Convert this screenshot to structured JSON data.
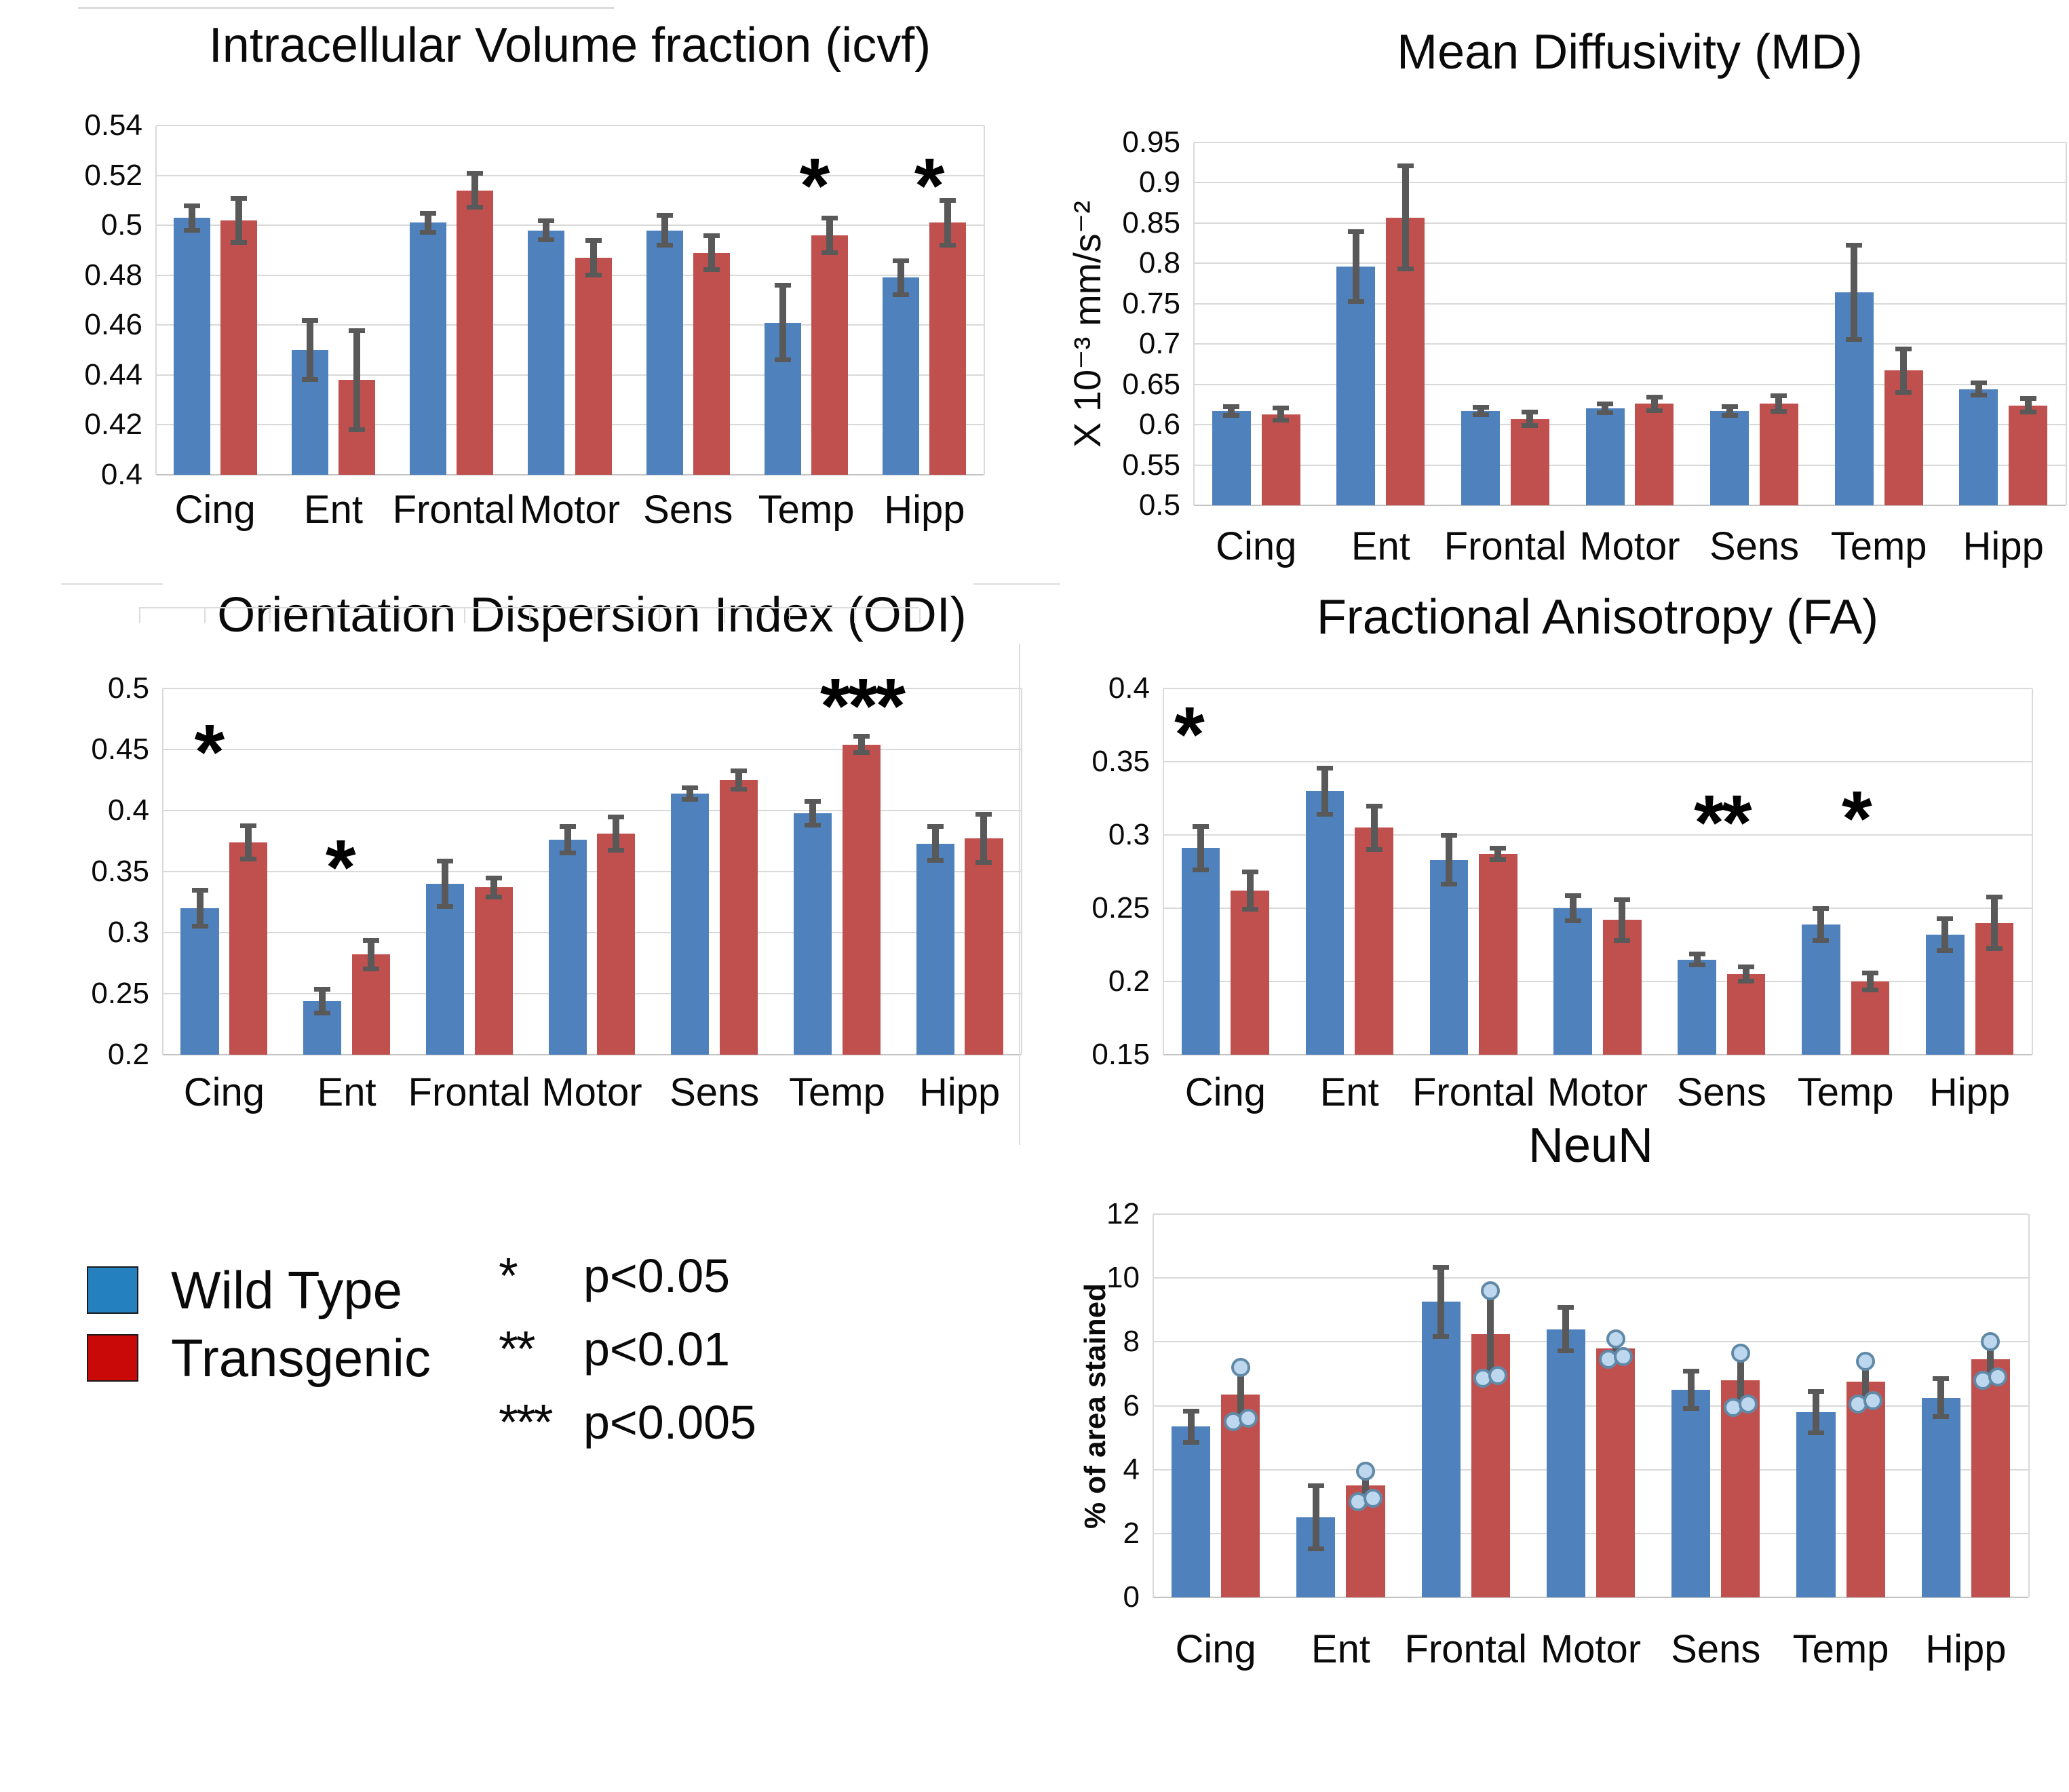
{
  "figure": {
    "background": "#ffffff",
    "description": "Five grouped bar charts comparing Wild Type vs Transgenic across brain regions with error bars and significance asterisks"
  },
  "legend": {
    "items": [
      {
        "label": "Wild Type",
        "color": "#2580bf"
      },
      {
        "label": "Transgenic",
        "color": "#c90808"
      }
    ],
    "significance": [
      {
        "symbol": "*",
        "label": "p<0.05"
      },
      {
        "symbol": "**",
        "label": "p<0.01"
      },
      {
        "symbol": "***",
        "label": "p<0.005"
      }
    ]
  },
  "series_colors": {
    "wild_type": "#4f81bd",
    "transgenic": "#c0504d",
    "error_bar": "#595959",
    "point_fill": "#bdd7ee",
    "point_stroke": "#6089a8"
  },
  "chart_data": [
    {
      "id": "icvf",
      "type": "bar",
      "title": "Intracellular Volume fraction (icvf)",
      "ylabel": "",
      "categories": [
        "Cing",
        "Ent",
        "Frontal",
        "Motor",
        "Sens",
        "Temp",
        "Hipp"
      ],
      "ylim": [
        0.4,
        0.54
      ],
      "grid": true,
      "yticks": [
        "0.4",
        "0.42",
        "0.44",
        "0.46",
        "0.48",
        "0.5",
        "0.52",
        "0.54"
      ],
      "ytick_values": [
        0.4,
        0.42,
        0.44,
        0.46,
        0.48,
        0.5,
        0.52,
        0.54
      ],
      "series": [
        {
          "name": "Wild Type",
          "values": [
            0.503,
            0.45,
            0.501,
            0.498,
            0.498,
            0.461,
            0.479
          ],
          "errors": [
            0.005,
            0.012,
            0.004,
            0.004,
            0.006,
            0.015,
            0.007
          ]
        },
        {
          "name": "Transgenic",
          "values": [
            0.502,
            0.438,
            0.514,
            0.487,
            0.489,
            0.496,
            0.501
          ],
          "errors": [
            0.009,
            0.02,
            0.007,
            0.007,
            0.007,
            0.007,
            0.009
          ]
        }
      ],
      "annotations": [
        {
          "category": "Temp",
          "text": "*",
          "y": 0.518,
          "dx": 0.06
        },
        {
          "category": "Hipp",
          "text": "*",
          "y": 0.518,
          "dx": 0.03
        }
      ]
    },
    {
      "id": "md",
      "type": "bar",
      "title": "Mean Diffusivity (MD)",
      "ylabel": "X 10⁻³ mm/s⁻²",
      "categories": [
        "Cing",
        "Ent",
        "Frontal",
        "Motor",
        "Sens",
        "Temp",
        "Hipp"
      ],
      "ylim": [
        0.5,
        0.95
      ],
      "grid": true,
      "yticks": [
        "0.5",
        "0.55",
        "0.6",
        "0.65",
        "0.7",
        "0.75",
        "0.8",
        "0.85",
        "0.9",
        "0.95"
      ],
      "ytick_values": [
        0.5,
        0.55,
        0.6,
        0.65,
        0.7,
        0.75,
        0.8,
        0.85,
        0.9,
        0.95
      ],
      "series": [
        {
          "name": "Wild Type",
          "values": [
            0.617,
            0.796,
            0.617,
            0.62,
            0.617,
            0.764,
            0.644
          ],
          "errors": [
            0.006,
            0.044,
            0.005,
            0.006,
            0.006,
            0.059,
            0.008
          ]
        },
        {
          "name": "Transgenic",
          "values": [
            0.613,
            0.857,
            0.607,
            0.626,
            0.626,
            0.667,
            0.624
          ],
          "errors": [
            0.008,
            0.064,
            0.009,
            0.009,
            0.01,
            0.027,
            0.009
          ]
        }
      ],
      "annotations": []
    },
    {
      "id": "odi",
      "type": "bar",
      "title": "Orientation Dispersion Index (ODI)",
      "ylabel": "",
      "categories": [
        "Cing",
        "Ent",
        "Frontal",
        "Motor",
        "Sens",
        "Temp",
        "Hipp"
      ],
      "ylim": [
        0.2,
        0.5
      ],
      "grid": true,
      "yticks": [
        "0.2",
        "0.25",
        "0.3",
        "0.35",
        "0.4",
        "0.45",
        "0.5"
      ],
      "ytick_values": [
        0.2,
        0.25,
        0.3,
        0.35,
        0.4,
        0.45,
        0.5
      ],
      "series": [
        {
          "name": "Wild Type",
          "values": [
            0.32,
            0.244,
            0.34,
            0.376,
            0.414,
            0.398,
            0.373
          ],
          "errors": [
            0.015,
            0.01,
            0.019,
            0.011,
            0.005,
            0.01,
            0.014
          ]
        },
        {
          "name": "Transgenic",
          "values": [
            0.374,
            0.282,
            0.337,
            0.381,
            0.425,
            0.454,
            0.377
          ],
          "errors": [
            0.014,
            0.012,
            0.008,
            0.014,
            0.008,
            0.007,
            0.02
          ]
        }
      ],
      "annotations": [
        {
          "category": "Cing",
          "text": "*",
          "y": 0.452,
          "dx": -0.13
        },
        {
          "category": "Ent",
          "text": "*",
          "y": 0.358,
          "dx": -0.06
        },
        {
          "category": "Temp",
          "text": "***",
          "y": 0.49,
          "dx": 0.2
        }
      ]
    },
    {
      "id": "fa",
      "type": "bar",
      "title": "Fractional Anisotropy (FA)",
      "ylabel": "",
      "categories": [
        "Cing",
        "Ent",
        "Frontal",
        "Motor",
        "Sens",
        "Temp",
        "Hipp"
      ],
      "ylim": [
        0.15,
        0.4
      ],
      "grid": true,
      "yticks": [
        "0.15",
        "0.2",
        "0.25",
        "0.3",
        "0.35",
        "0.4"
      ],
      "ytick_values": [
        0.15,
        0.2,
        0.25,
        0.3,
        0.35,
        0.4
      ],
      "series": [
        {
          "name": "Wild Type",
          "values": [
            0.291,
            0.33,
            0.283,
            0.25,
            0.215,
            0.239,
            0.232
          ],
          "errors": [
            0.015,
            0.016,
            0.017,
            0.009,
            0.004,
            0.011,
            0.011
          ]
        },
        {
          "name": "Transgenic",
          "values": [
            0.262,
            0.305,
            0.287,
            0.242,
            0.205,
            0.2,
            0.24
          ],
          "errors": [
            0.013,
            0.015,
            0.004,
            0.014,
            0.005,
            0.006,
            0.018
          ]
        }
      ],
      "annotations": [
        {
          "category": "Cing",
          "text": "*",
          "y": 0.372,
          "dx": -0.3
        },
        {
          "category": "Sens",
          "text": "**",
          "y": 0.312,
          "dx": 0.0
        },
        {
          "category": "Temp",
          "text": "*",
          "y": 0.315,
          "dx": 0.08
        }
      ]
    },
    {
      "id": "neun",
      "type": "bar",
      "title": "NeuN",
      "ylabel": "% of area stained",
      "categories": [
        "Cing",
        "Ent",
        "Frontal",
        "Motor",
        "Sens",
        "Temp",
        "Hipp"
      ],
      "ylim": [
        0,
        12
      ],
      "grid": true,
      "yticks": [
        "0",
        "2",
        "4",
        "6",
        "8",
        "10",
        "12"
      ],
      "ytick_values": [
        0,
        2,
        4,
        6,
        8,
        10,
        12
      ],
      "series": [
        {
          "name": "Wild Type",
          "values": [
            5.35,
            2.5,
            9.25,
            8.4,
            6.5,
            5.8,
            6.25
          ],
          "errors": [
            0.5,
            1.0,
            1.1,
            0.7,
            0.6,
            0.65,
            0.6
          ]
        },
        {
          "name": "Transgenic",
          "values": [
            6.35,
            3.5,
            8.25,
            7.8,
            6.8,
            6.75,
            7.45
          ],
          "errors": [
            0.85,
            0.5,
            1.4,
            0.35,
            0.85,
            0.7,
            0.6
          ],
          "points": [
            [
              7.2,
              5.5,
              5.6
            ],
            [
              3.95,
              3.0,
              3.1
            ],
            [
              9.6,
              6.85,
              6.95
            ],
            [
              8.1,
              7.45,
              7.55
            ],
            [
              7.65,
              5.95,
              6.05
            ],
            [
              7.4,
              6.05,
              6.15
            ],
            [
              8.0,
              6.8,
              6.9
            ]
          ]
        }
      ],
      "annotations": []
    }
  ]
}
